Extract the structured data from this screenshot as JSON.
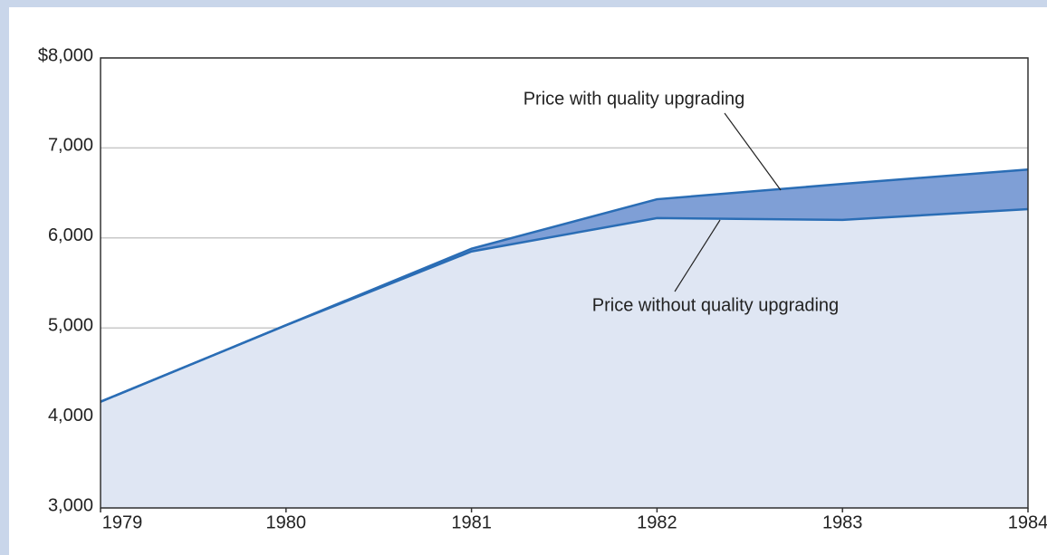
{
  "chart_data": {
    "type": "area",
    "x": [
      1979,
      1980,
      1981,
      1982,
      1983,
      1984
    ],
    "series": [
      {
        "name": "Price with quality upgrading",
        "color": "#7f9fd6",
        "values": [
          4180,
          5030,
          5880,
          6430,
          6600,
          6760
        ]
      },
      {
        "name": "Price without quality upgrading",
        "color": "#dfe6f3",
        "values": [
          4180,
          5030,
          5850,
          6220,
          6200,
          6320
        ]
      }
    ],
    "line_color": "#2a6db5",
    "xlim": [
      1979,
      1984
    ],
    "xticks": [
      1979,
      1980,
      1981,
      1982,
      1983,
      1984
    ],
    "ylim": [
      3000,
      8000
    ],
    "yticks": [
      {
        "value": 3000,
        "label": "3,000"
      },
      {
        "value": 4000,
        "label": "4,000"
      },
      {
        "value": 5000,
        "label": "5,000"
      },
      {
        "value": 6000,
        "label": "6,000"
      },
      {
        "value": 7000,
        "label": "7,000"
      },
      {
        "value": 8000,
        "label": "$8,000"
      }
    ],
    "grid": true
  }
}
